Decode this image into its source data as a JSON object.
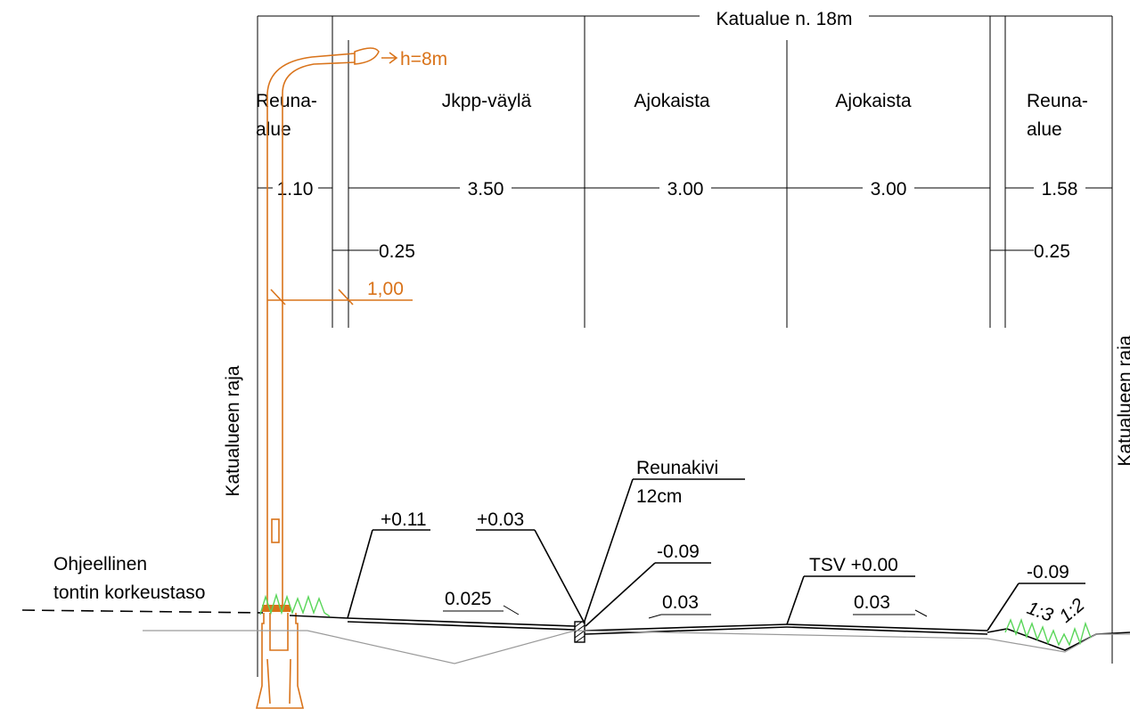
{
  "title": "Katualue n. 18m",
  "lanes": {
    "reuna_left": [
      "Reuna-",
      "alue"
    ],
    "jkpp": "Jkpp-väylä",
    "ajokaista_1": "Ajokaista",
    "ajokaista_2": "Ajokaista",
    "reuna_right": [
      "Reuna-",
      "alue"
    ]
  },
  "widths": {
    "reuna_left": "1.10",
    "jkpp": "3.50",
    "ajokaista_1": "3.00",
    "ajokaista_2": "3.00",
    "reuna_right": "1.58",
    "curb_left": "0.25",
    "curb_right": "0.25"
  },
  "lamp": {
    "height": "h=8m",
    "offset": "1,00"
  },
  "boundary_label": "Katualueen raja",
  "reference": [
    "Ohjeellinen",
    "tontin korkeustaso"
  ],
  "curb": [
    "Reunakivi",
    "12cm"
  ],
  "elevations": {
    "jkpp_edge": "+0.11",
    "jkpp_curb": "+0.03",
    "road_curb": "-0.09",
    "tsv": "TSV +0.00",
    "road_right": "-0.09"
  },
  "slopes": {
    "jkpp": "0.025",
    "lane_1": "0.03",
    "lane_2": "0.03",
    "ditch_1": "1:3",
    "ditch_2": "1:2"
  },
  "colors": {
    "lines": "#000000",
    "lamp": "#d9731a",
    "vegetation": "#5ad65a",
    "subgrade": "#9a9a9a"
  }
}
